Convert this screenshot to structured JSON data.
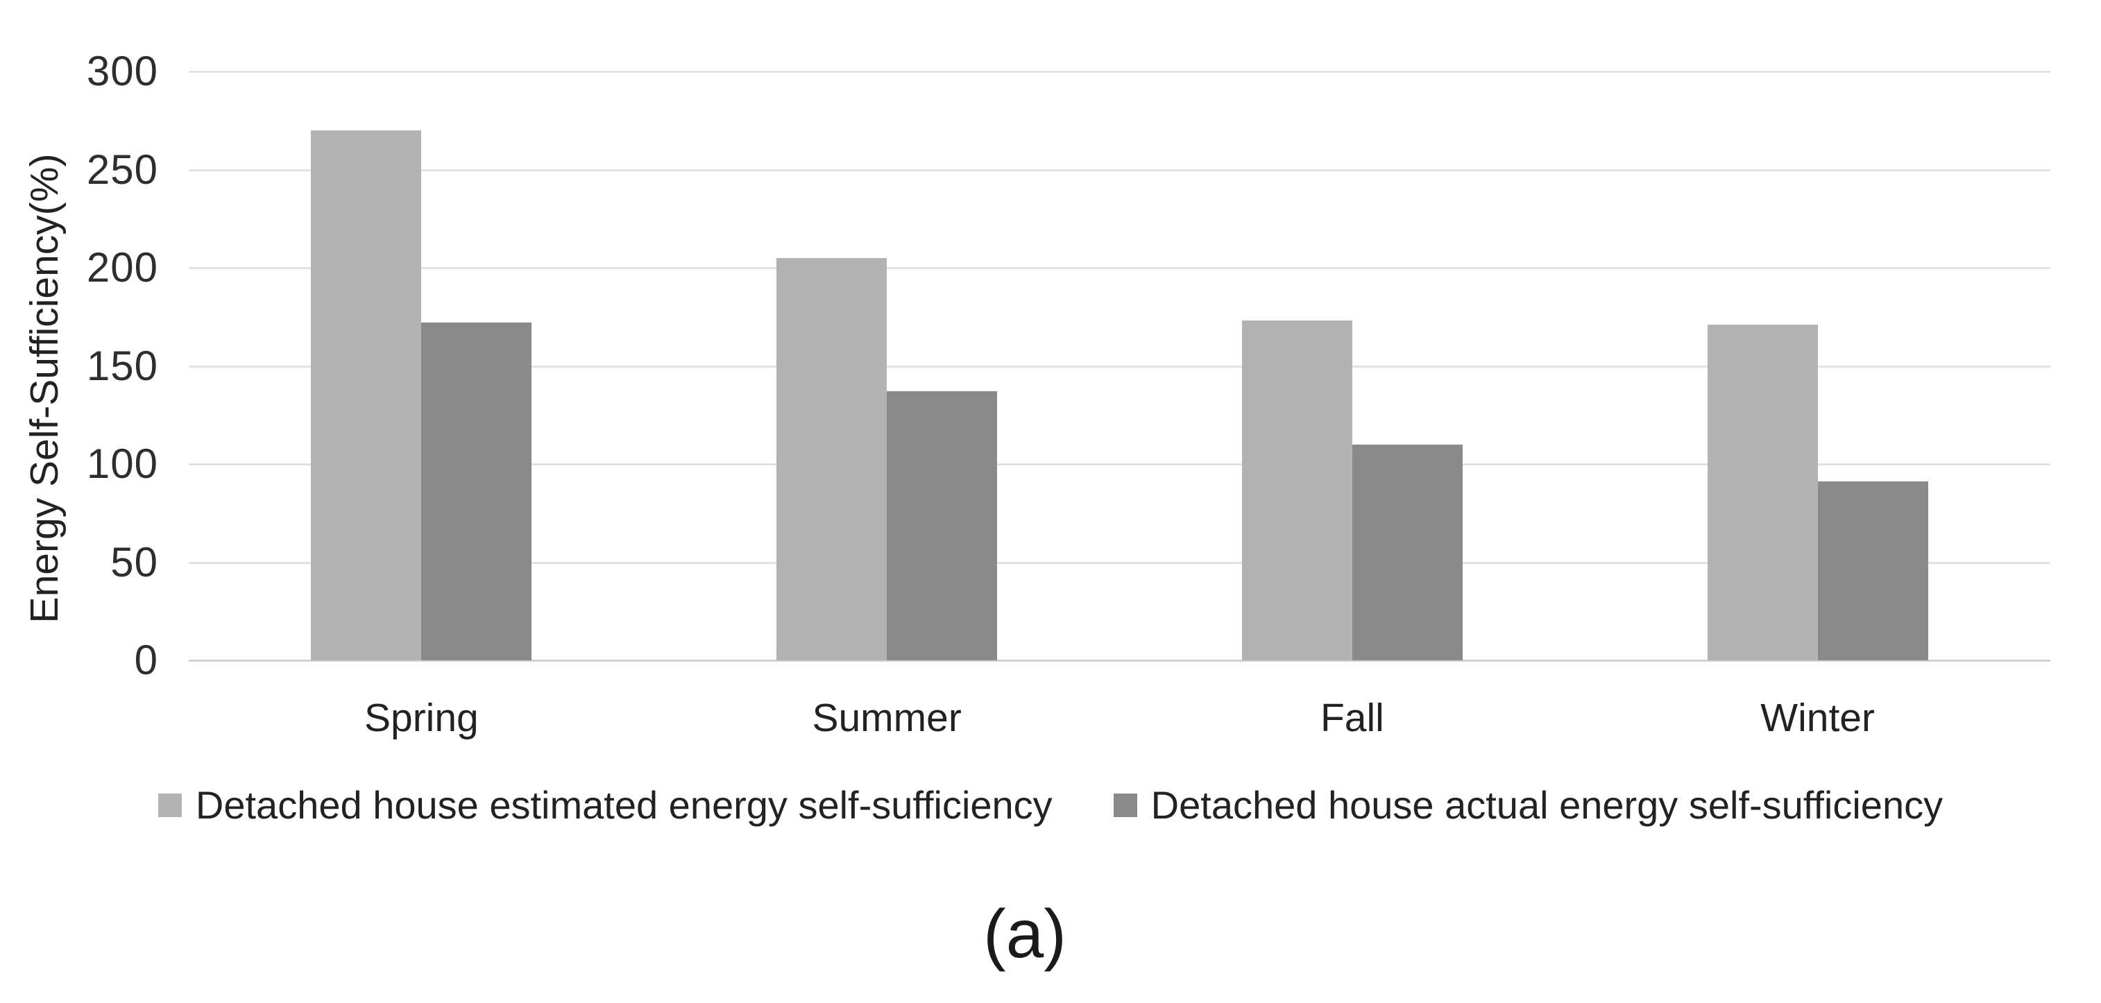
{
  "chart_data": {
    "type": "bar",
    "title": "",
    "categories": [
      "Spring",
      "Summer",
      "Fall",
      "Winter"
    ],
    "series": [
      {
        "name": "Detached house estimated energy self-sufficiency",
        "color": "#b3b3b3",
        "values": [
          270,
          205,
          173,
          171
        ]
      },
      {
        "name": "Detached house actual energy self-sufficiency",
        "color": "#8a8a8a",
        "values": [
          172,
          137,
          110,
          91
        ]
      }
    ],
    "xlabel": "",
    "ylabel": "Energy Self-Sufficiency(%)",
    "ylim": [
      0,
      300
    ],
    "yticks": [
      0,
      50,
      100,
      150,
      200,
      250,
      300
    ],
    "grid": true,
    "legend_position": "bottom"
  },
  "caption": "(a)",
  "colors": {
    "background": "#ffffff",
    "gridline": "#e2e2e2",
    "axis_line": "#cfcfcf",
    "text": "#2e2e2e"
  }
}
